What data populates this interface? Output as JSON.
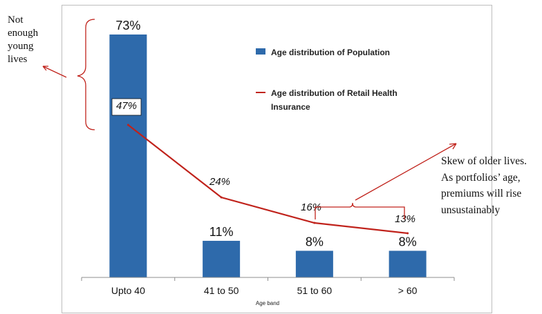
{
  "chart_data": {
    "type": "bar",
    "categories": [
      "Upto 40",
      "41 to 50",
      "51 to 60",
      "> 60"
    ],
    "xlabel": "Age band",
    "ylabel": "",
    "ylim": [
      0,
      80
    ],
    "grid": false,
    "legend_position": "top-right",
    "series": [
      {
        "name": "Age distribution of Population",
        "kind": "bar",
        "values": [
          73,
          11,
          8,
          8
        ],
        "labels": [
          "73%",
          "11%",
          "8%",
          "8%"
        ],
        "color": "#2E6AAB"
      },
      {
        "name": "Age distribution of Retail Health Insurance",
        "kind": "line",
        "values": [
          47,
          24,
          16,
          13
        ],
        "labels": [
          "47%",
          "24%",
          "16%",
          "13%"
        ],
        "color": "#C0221B"
      }
    ]
  },
  "annotations": {
    "left_lines": [
      "Not",
      "enough",
      "young",
      "lives"
    ],
    "right_lines": [
      "Skew of older lives.",
      "As portfolios’ age,",
      "premiums will rise",
      "unsustainably"
    ],
    "arrow_color": "#C0221B"
  }
}
